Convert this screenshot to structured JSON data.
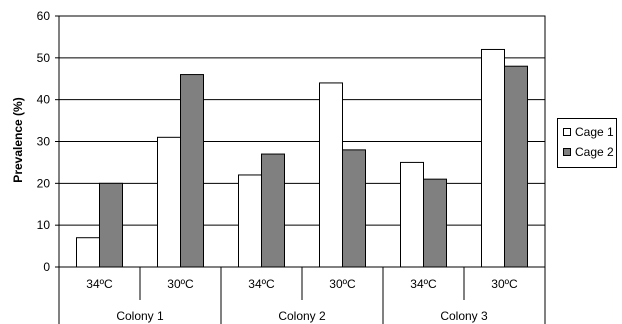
{
  "chart_data": {
    "type": "bar",
    "categories": [
      "34ºC",
      "30ºC",
      "34ºC",
      "30ºC",
      "34ºC",
      "30ºC"
    ],
    "groups": [
      "Colony 1",
      "Colony 2",
      "Colony 3"
    ],
    "series": [
      {
        "name": "Cage 1",
        "values": [
          7,
          31,
          22,
          44,
          25,
          52
        ],
        "color": "#ffffff"
      },
      {
        "name": "Cage 2",
        "values": [
          20,
          46,
          27,
          28,
          21,
          48
        ],
        "color": "#808080"
      }
    ],
    "title": "",
    "xlabel": "",
    "ylabel": "Prevalence (%)",
    "ylim": [
      0,
      60
    ],
    "yticks": [
      0,
      10,
      20,
      30,
      40,
      50,
      60
    ],
    "grid": true,
    "legend_position": "right"
  }
}
